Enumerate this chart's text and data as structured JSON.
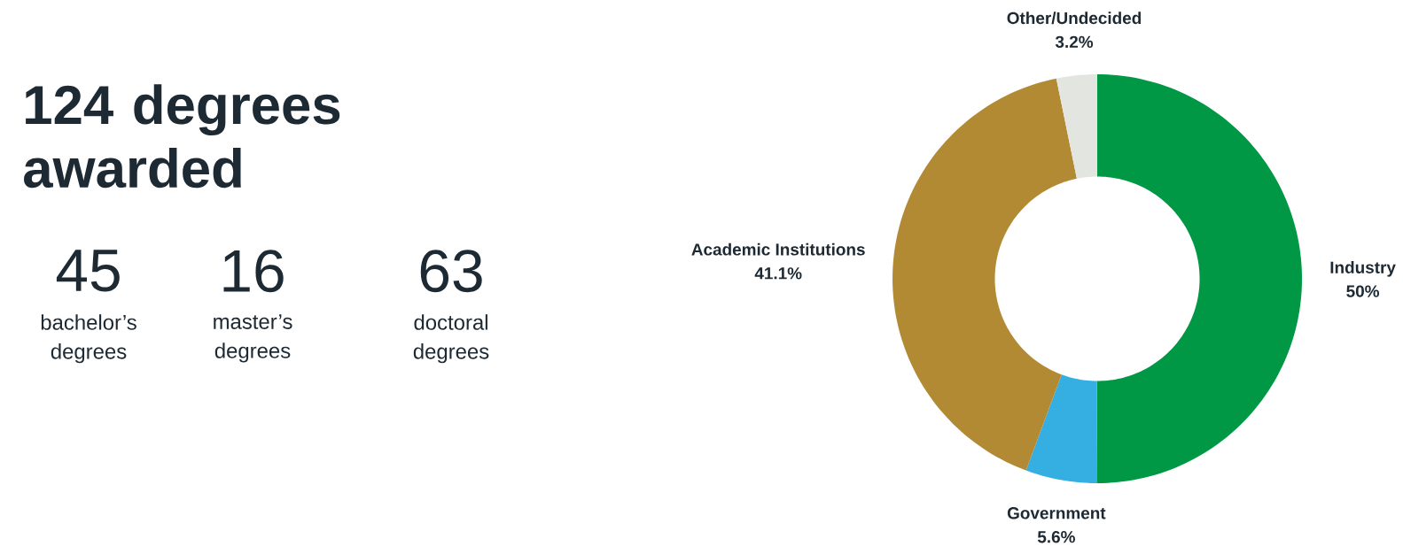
{
  "chart_data": [
    {
      "type": "other",
      "title": "124 degrees awarded",
      "annotations": [
        "45",
        "bachelor’s degrees",
        "16",
        "master’s degrees",
        "63",
        "doctoral degrees"
      ]
    },
    {
      "type": "donut",
      "categories": [
        "Industry",
        "Government",
        "Academic Institutions",
        "Other/Undecided"
      ],
      "values": [
        50,
        5.6,
        41.1,
        3.2
      ],
      "value_labels": [
        "50%",
        "5.6%",
        "41.1%",
        "3.2%"
      ],
      "colors": [
        "#009845",
        "#35aee2",
        "#b38a34",
        "#e3e5e0"
      ]
    }
  ]
}
